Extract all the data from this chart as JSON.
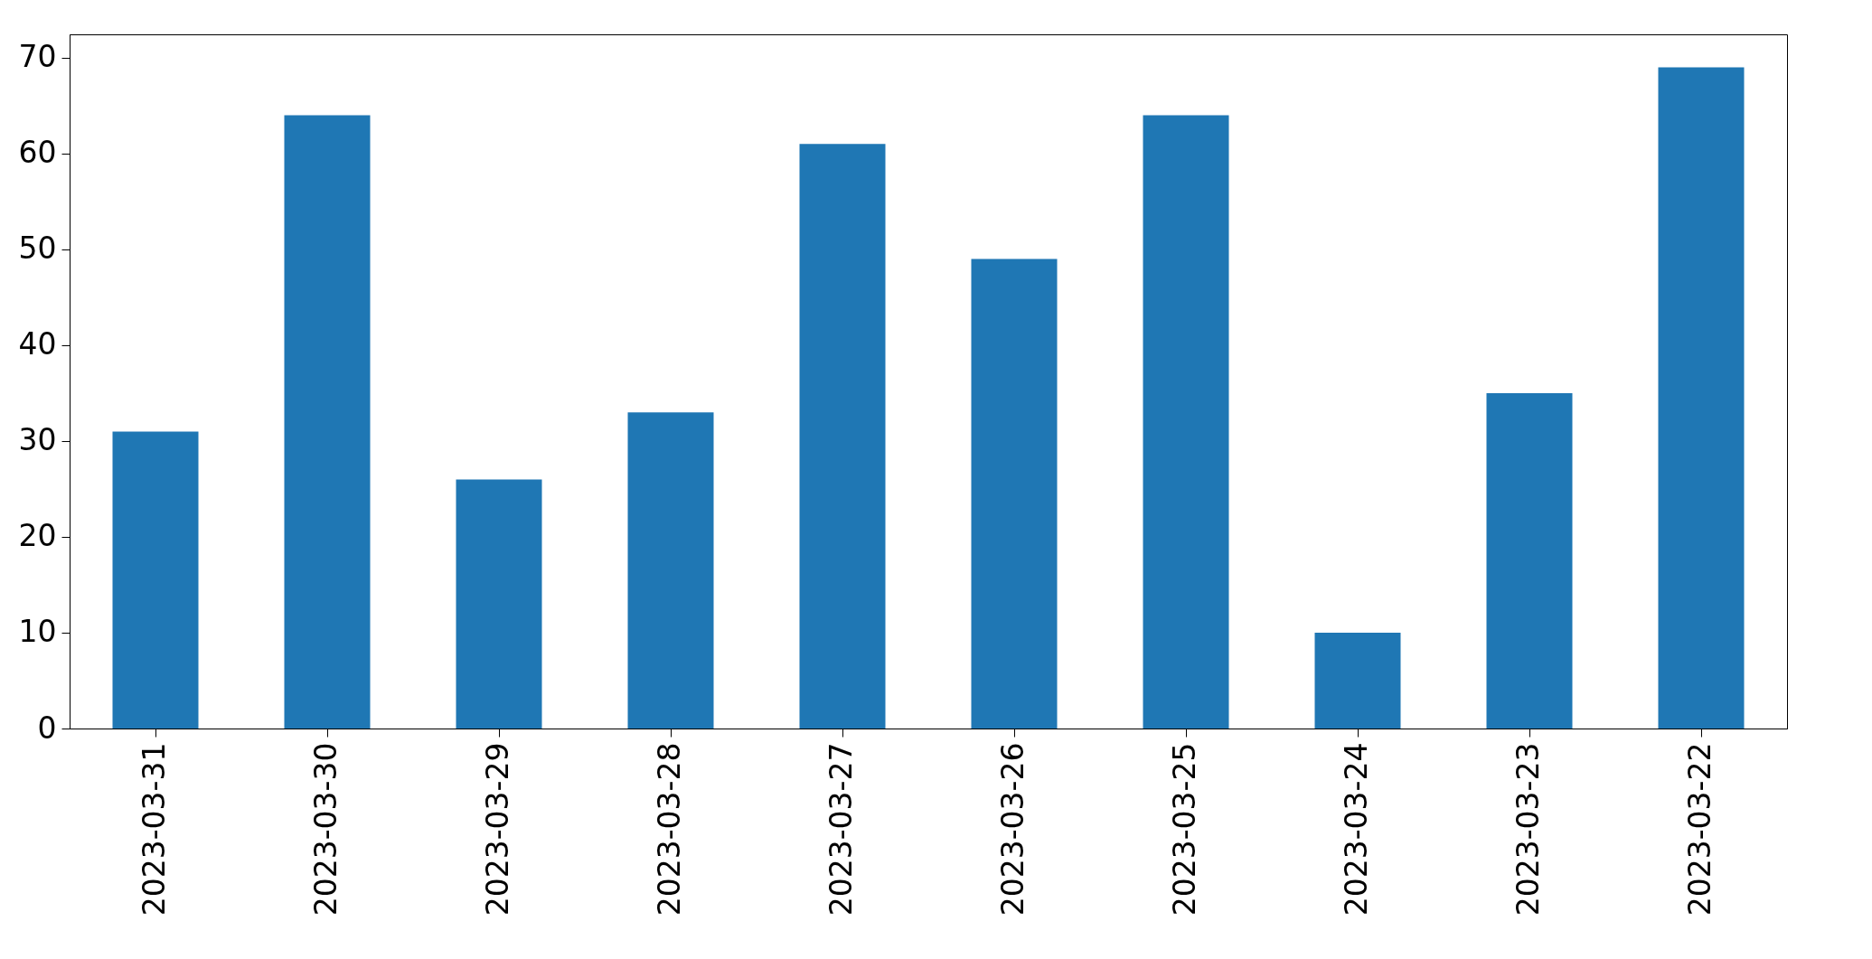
{
  "chart_data": {
    "type": "bar",
    "categories": [
      "2023-03-31",
      "2023-03-30",
      "2023-03-29",
      "2023-03-28",
      "2023-03-27",
      "2023-03-26",
      "2023-03-25",
      "2023-03-24",
      "2023-03-23",
      "2023-03-22"
    ],
    "values": [
      31,
      64,
      26,
      33,
      61,
      49,
      64,
      10,
      35,
      69
    ],
    "color": "#1f77b4",
    "ylim": [
      0,
      72.45
    ],
    "yticks": [
      0,
      10,
      20,
      30,
      40,
      50,
      60,
      70
    ],
    "grid": false
  }
}
